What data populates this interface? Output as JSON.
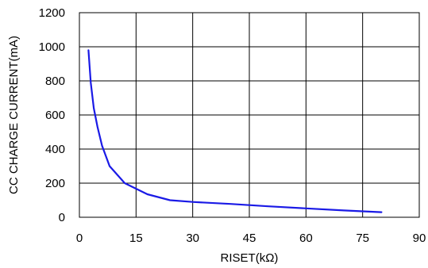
{
  "chart_data": {
    "type": "line",
    "title": "",
    "xlabel": "RISET(kΩ)",
    "ylabel": "CC CHARGE CURRENT(mA)",
    "xlim": [
      0,
      90
    ],
    "ylim": [
      0,
      1200
    ],
    "x_ticks": [
      0,
      15,
      30,
      45,
      60,
      75,
      90
    ],
    "y_ticks": [
      0,
      200,
      400,
      600,
      800,
      1000,
      1200
    ],
    "x_tick_labels": [
      "0",
      "15",
      "30",
      "45",
      "60",
      "75",
      "90"
    ],
    "y_tick_labels": [
      "0",
      "200",
      "400",
      "600",
      "800",
      "1000",
      "1200"
    ],
    "grid": true,
    "legend": "none",
    "series": [
      {
        "color": "#1a1ae6",
        "x": [
          2.4,
          3.0,
          3.8,
          4.8,
          6.0,
          8.0,
          12.0,
          18.0,
          24.0,
          30.0,
          40.0,
          50.0,
          60.0,
          70.0,
          80.0
        ],
        "y": [
          980,
          790,
          640,
          530,
          420,
          300,
          200,
          135,
          100,
          90,
          78,
          64,
          52,
          40,
          30
        ]
      }
    ]
  }
}
